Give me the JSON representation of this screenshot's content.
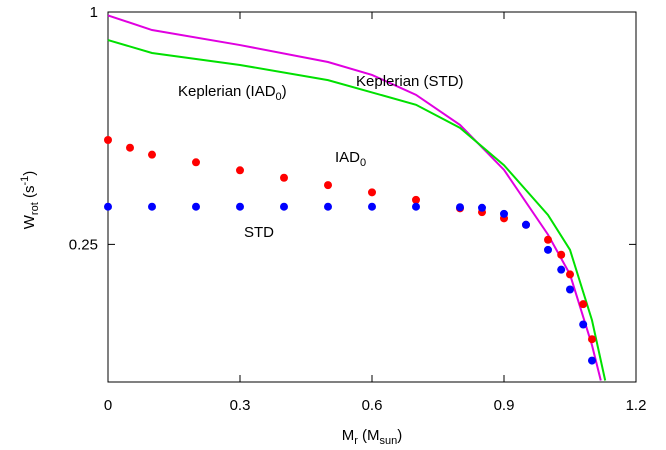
{
  "chart_data": {
    "type": "scatter",
    "xlabel": [
      {
        "t": "M"
      },
      {
        "t": "r",
        "sub": true
      },
      {
        "t": " (M"
      },
      {
        "t": "sun",
        "sub": true
      },
      {
        "t": ")"
      }
    ],
    "ylabel": [
      {
        "t": "W"
      },
      {
        "t": "rot",
        "sub": true
      },
      {
        "t": " (s"
      },
      {
        "t": "-1",
        "sup": true
      },
      {
        "t": ")"
      }
    ],
    "xlim": [
      0,
      1.2
    ],
    "xticks": [
      0,
      0.3,
      0.6,
      0.9,
      1.2
    ],
    "ylim": [
      0.11,
      1
    ],
    "yticks": [
      0.25,
      1
    ],
    "ylog": true,
    "annotations": [
      {
        "parts": [
          {
            "t": "Keplerian (IAD"
          },
          {
            "t": "0",
            "sub": true
          },
          {
            "t": ")"
          }
        ]
      },
      {
        "parts": [
          {
            "t": "Keplerian (STD)"
          }
        ]
      },
      {
        "parts": [
          {
            "t": "IAD"
          },
          {
            "t": "0",
            "sub": true
          }
        ]
      },
      {
        "parts": [
          {
            "t": "STD"
          }
        ]
      }
    ],
    "series": [
      {
        "kind": "line",
        "color": "#e000e0",
        "x": [
          0,
          0.1,
          0.3,
          0.5,
          0.6,
          0.7,
          0.8,
          0.9,
          1.0,
          1.05,
          1.1,
          1.12
        ],
        "values": [
          0.98,
          0.898,
          0.821,
          0.742,
          0.687,
          0.61,
          0.51,
          0.39,
          0.265,
          0.209,
          0.137,
          0.111
        ]
      },
      {
        "kind": "line",
        "color": "#00e000",
        "x": [
          0,
          0.1,
          0.3,
          0.5,
          0.7,
          0.8,
          0.9,
          1.0,
          1.05,
          1.1,
          1.13
        ],
        "values": [
          0.846,
          0.783,
          0.729,
          0.666,
          0.575,
          0.501,
          0.401,
          0.298,
          0.242,
          0.159,
          0.111
        ]
      },
      {
        "kind": "points",
        "color": "#ff0000",
        "x": [
          0,
          0.05,
          0.1,
          0.2,
          0.3,
          0.4,
          0.5,
          0.6,
          0.7,
          0.8,
          0.85,
          0.9,
          0.95,
          1.0,
          1.03,
          1.05,
          1.08,
          1.1
        ],
        "values": [
          0.466,
          0.445,
          0.427,
          0.408,
          0.389,
          0.372,
          0.356,
          0.341,
          0.326,
          0.31,
          0.303,
          0.292,
          0.281,
          0.257,
          0.235,
          0.209,
          0.175,
          0.142
        ]
      },
      {
        "kind": "points",
        "color": "#0000ff",
        "x": [
          0,
          0.1,
          0.2,
          0.3,
          0.4,
          0.5,
          0.6,
          0.7,
          0.8,
          0.85,
          0.9,
          0.95,
          1.0,
          1.03,
          1.05,
          1.08,
          1.1
        ],
        "values": [
          0.313,
          0.313,
          0.313,
          0.313,
          0.313,
          0.313,
          0.313,
          0.313,
          0.312,
          0.311,
          0.3,
          0.281,
          0.242,
          0.215,
          0.191,
          0.155,
          0.125
        ]
      }
    ]
  }
}
